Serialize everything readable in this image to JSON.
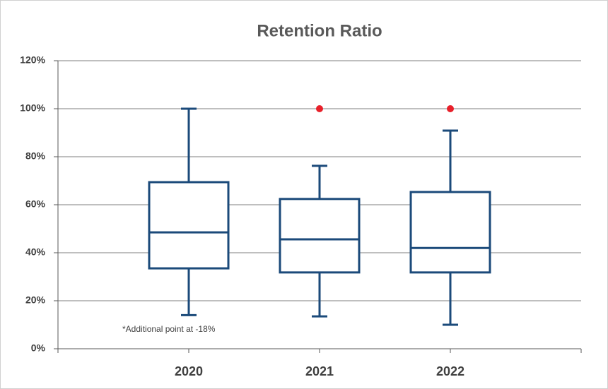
{
  "chart_data": {
    "type": "box",
    "title": "Retention Ratio",
    "categories": [
      "2020",
      "2021",
      "2022"
    ],
    "boxes": [
      {
        "min": 14,
        "q1": 33.5,
        "median": 48.5,
        "q3": 69.4,
        "max": 100,
        "outliers": []
      },
      {
        "min": 13.5,
        "q1": 31.8,
        "median": 45.6,
        "q3": 62.4,
        "max": 76.2,
        "outliers": [
          100
        ]
      },
      {
        "min": 10,
        "q1": 31.8,
        "median": 42,
        "q3": 65.3,
        "max": 90.9,
        "outliers": [
          100
        ]
      }
    ],
    "color": "#1b4a7a",
    "outlier_color": "#e8202a",
    "ylim": [
      0,
      120
    ],
    "yticks": [
      {
        "value": 0,
        "label": "0%"
      },
      {
        "value": 20,
        "label": "20%"
      },
      {
        "value": 40,
        "label": "40%"
      },
      {
        "value": 60,
        "label": "60%"
      },
      {
        "value": 80,
        "label": "80%"
      },
      {
        "value": 100,
        "label": "100%"
      },
      {
        "value": 120,
        "label": "120%"
      }
    ],
    "grid": true,
    "annotation": "*Additional point at -18%"
  }
}
